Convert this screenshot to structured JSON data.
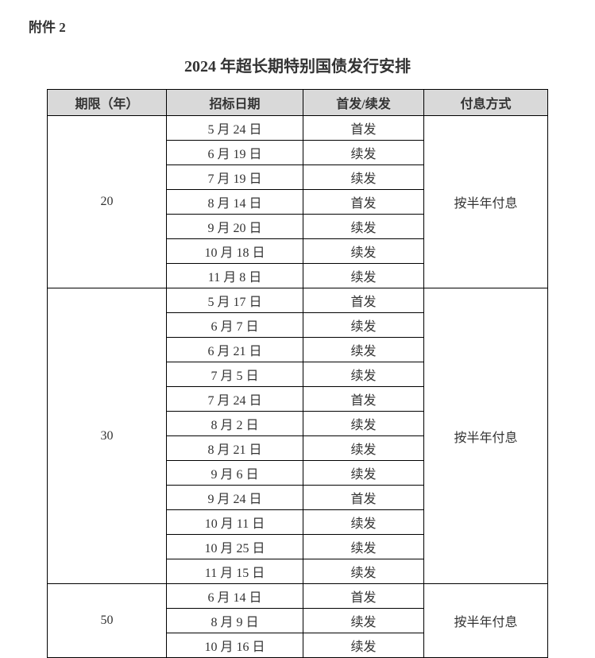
{
  "attachment_label": "附件 2",
  "title": "2024 年超长期特别国债发行安排",
  "headers": {
    "term": "期限（年）",
    "date": "招标日期",
    "type": "首发/续发",
    "payment": "付息方式"
  },
  "groups": [
    {
      "term": "20",
      "payment": "按半年付息",
      "rows": [
        {
          "date": "5 月 24 日",
          "type": "首发"
        },
        {
          "date": "6 月 19 日",
          "type": "续发"
        },
        {
          "date": "7 月 19 日",
          "type": "续发"
        },
        {
          "date": "8 月 14 日",
          "type": "首发"
        },
        {
          "date": "9 月 20 日",
          "type": "续发"
        },
        {
          "date": "10 月 18 日",
          "type": "续发"
        },
        {
          "date": "11 月 8 日",
          "type": "续发"
        }
      ]
    },
    {
      "term": "30",
      "payment": "按半年付息",
      "rows": [
        {
          "date": "5 月 17 日",
          "type": "首发"
        },
        {
          "date": "6 月 7 日",
          "type": "续发"
        },
        {
          "date": "6 月 21 日",
          "type": "续发"
        },
        {
          "date": "7 月 5 日",
          "type": "续发"
        },
        {
          "date": "7 月 24 日",
          "type": "首发"
        },
        {
          "date": "8 月 2 日",
          "type": "续发"
        },
        {
          "date": "8 月 21 日",
          "type": "续发"
        },
        {
          "date": "9 月 6 日",
          "type": "续发"
        },
        {
          "date": "9 月 24 日",
          "type": "首发"
        },
        {
          "date": "10 月 11 日",
          "type": "续发"
        },
        {
          "date": "10 月 25 日",
          "type": "续发"
        },
        {
          "date": "11 月 15 日",
          "type": "续发"
        }
      ]
    },
    {
      "term": "50",
      "payment": "按半年付息",
      "rows": [
        {
          "date": "6 月 14 日",
          "type": "首发"
        },
        {
          "date": "8 月 9 日",
          "type": "续发"
        },
        {
          "date": "10 月 16 日",
          "type": "续发"
        }
      ]
    }
  ]
}
